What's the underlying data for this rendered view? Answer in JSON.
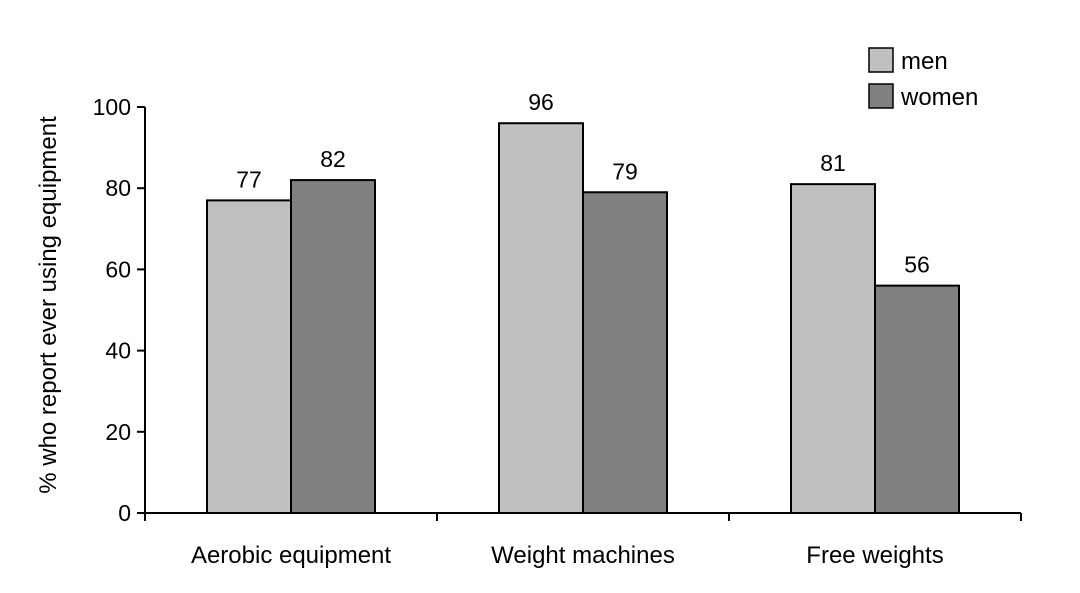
{
  "chart_data": {
    "type": "bar",
    "title": "",
    "xlabel": "",
    "ylabel": "% who report ever using equipment",
    "categories": [
      "Aerobic equipment",
      "Weight machines",
      "Free weights"
    ],
    "series": [
      {
        "name": "men",
        "values": [
          77,
          96,
          81
        ],
        "color": "#c0c0c0"
      },
      {
        "name": "women",
        "values": [
          82,
          79,
          56
        ],
        "color": "#808080"
      }
    ],
    "ylim": [
      0,
      100
    ],
    "yticks": [
      0,
      20,
      40,
      60,
      80,
      100
    ],
    "grid": false,
    "legend_position": "top-right",
    "data_labels": true
  }
}
